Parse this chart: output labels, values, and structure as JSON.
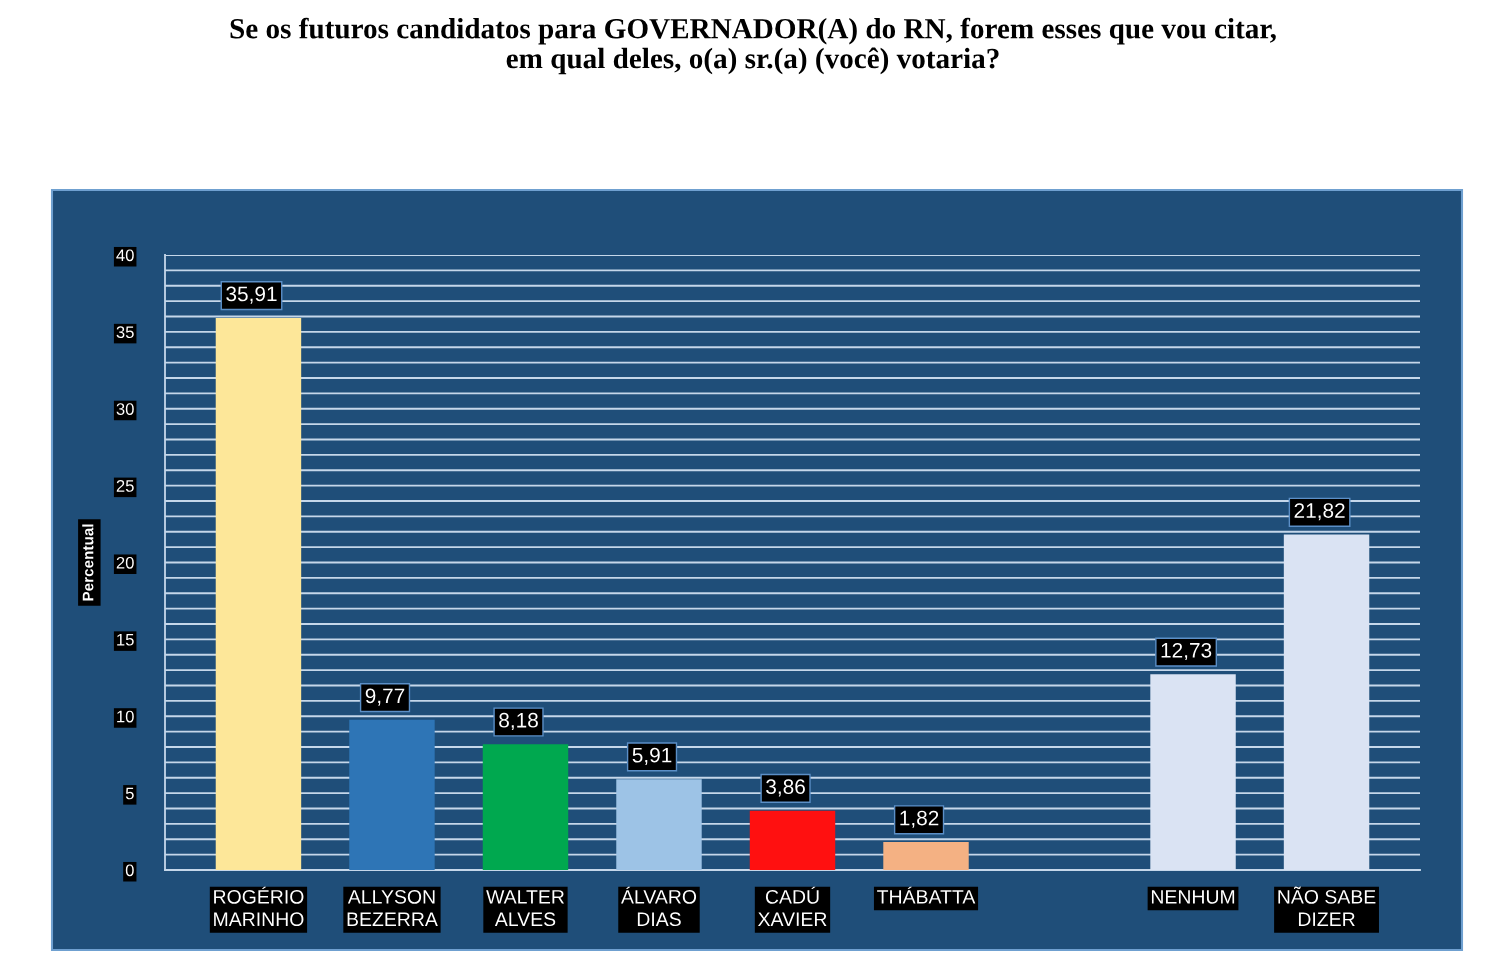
{
  "chart_data": {
    "type": "bar",
    "title": "Se os futuros candidatos para GOVERNADOR(A) do RN, forem esses que vou citar,\nem qual deles, o(a) sr.(a) (você) votaria?",
    "ylabel": "Percentual",
    "categories": [
      "ROGÉRIO MARINHO",
      "ALLYSON BEZERRA",
      "WALTER ALVES",
      "ÁLVARO DIAS",
      "CADÚ XAVIER",
      "THÁBATTA",
      null,
      "NENHUM",
      "NÃO SABE DIZER"
    ],
    "values": [
      35.91,
      9.77,
      8.18,
      5.91,
      3.86,
      1.82,
      null,
      12.73,
      21.82
    ],
    "value_labels": [
      "35,91",
      "9,77",
      "8,18",
      "5,91",
      "3,86",
      "1,82",
      null,
      "12,73",
      "21,82"
    ],
    "colors": [
      "#fde799",
      "#2e75b6",
      "#00a84f",
      "#9dc3e6",
      "#ff1010",
      "#f4b183",
      null,
      "#dae3f3",
      "#dae3f3"
    ],
    "ylim": [
      0,
      40
    ],
    "yticks": [
      0,
      {
        "value": 1,
        "label": null
      },
      {
        "value": 2,
        "label": null
      },
      {
        "value": 3,
        "label": null
      },
      {
        "value": 4,
        "label": null
      },
      5,
      {
        "value": 6,
        "label": null
      },
      {
        "value": 7,
        "label": null
      },
      {
        "value": 8,
        "label": null
      },
      {
        "value": 9,
        "label": null
      },
      10,
      {
        "value": 11,
        "label": null
      },
      {
        "value": 12,
        "label": null
      },
      {
        "value": 13,
        "label": null
      },
      {
        "value": 14,
        "label": null
      },
      15,
      {
        "value": 16,
        "label": null
      },
      {
        "value": 17,
        "label": null
      },
      {
        "value": 18,
        "label": null
      },
      {
        "value": 19,
        "label": null
      },
      20,
      {
        "value": 21,
        "label": null
      },
      {
        "value": 22,
        "label": null
      },
      {
        "value": 23,
        "label": null
      },
      {
        "value": 24,
        "label": null
      },
      25,
      {
        "value": 26,
        "label": null
      },
      {
        "value": 27,
        "label": null
      },
      {
        "value": 28,
        "label": null
      },
      {
        "value": 29,
        "label": null
      },
      30,
      {
        "value": 31,
        "label": null
      },
      {
        "value": 32,
        "label": null
      },
      {
        "value": 33,
        "label": null
      },
      {
        "value": 34,
        "label": null
      },
      35,
      {
        "value": 36,
        "label": null
      },
      {
        "value": 37,
        "label": null
      },
      {
        "value": 38,
        "label": null
      },
      {
        "value": 39,
        "label": null
      },
      40
    ],
    "grid": "y"
  }
}
